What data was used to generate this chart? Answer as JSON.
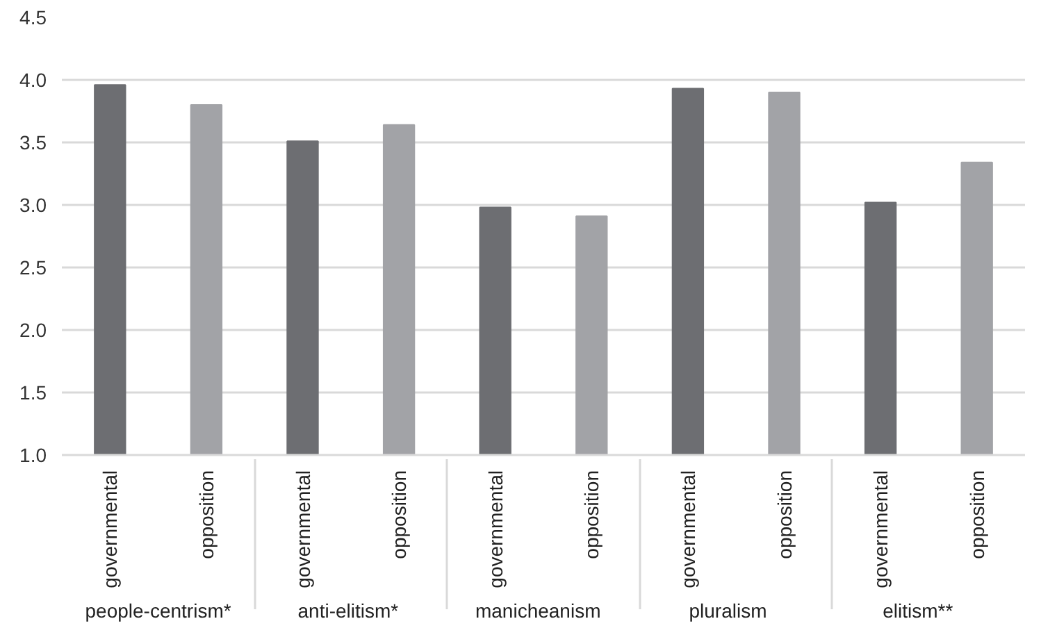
{
  "chart_data": {
    "type": "bar",
    "categories": [
      "governmental",
      "opposition",
      "governmental",
      "opposition",
      "governmental",
      "opposition",
      "governmental",
      "opposition",
      "governmental",
      "opposition"
    ],
    "values": [
      3.96,
      3.8,
      3.51,
      3.64,
      2.98,
      2.91,
      3.93,
      3.9,
      3.02,
      3.34
    ],
    "colors": [
      "#6d6e72",
      "#a2a3a7",
      "#6d6e72",
      "#a2a3a7",
      "#6d6e72",
      "#a2a3a7",
      "#6d6e72",
      "#a2a3a7",
      "#6d6e72",
      "#a2a3a7"
    ],
    "annotations": [
      "people-centrism*",
      "anti-elitism*",
      "manicheanism",
      "pluralism",
      "elitism**"
    ],
    "ylim": [
      1.0,
      4.5
    ],
    "yticks": [
      {
        "value": 1.0,
        "label": "1.0"
      },
      {
        "value": 1.5,
        "label": "1.5"
      },
      {
        "value": 2.0,
        "label": "2.0"
      },
      {
        "value": 2.5,
        "label": "2.5"
      },
      {
        "value": 3.0,
        "label": "3.0"
      },
      {
        "value": 3.5,
        "label": "3.5"
      },
      {
        "value": 4.0,
        "label": "4.0"
      },
      {
        "value": 4.5,
        "label": "4.5"
      }
    ],
    "grid": "y"
  }
}
